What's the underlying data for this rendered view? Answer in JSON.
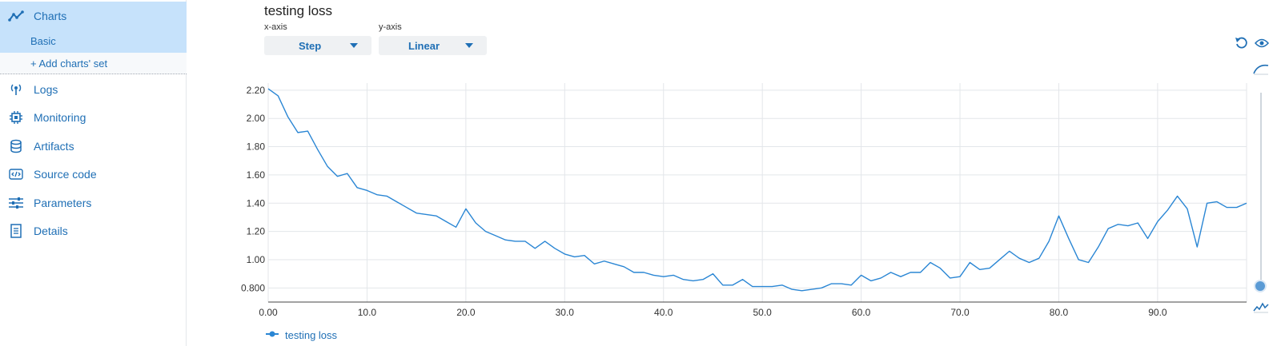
{
  "sidebar": {
    "items": [
      {
        "label": "Charts",
        "icon": "line-chart-icon"
      },
      {
        "label": "Logs",
        "icon": "broadcast-icon"
      },
      {
        "label": "Monitoring",
        "icon": "chip-icon"
      },
      {
        "label": "Artifacts",
        "icon": "database-icon"
      },
      {
        "label": "Source code",
        "icon": "code-icon"
      },
      {
        "label": "Parameters",
        "icon": "sliders-icon"
      },
      {
        "label": "Details",
        "icon": "document-icon"
      }
    ],
    "sub_basic": "Basic",
    "add_set": "+ Add charts' set"
  },
  "header": {
    "title": "testing loss",
    "xaxis_label": "x-axis",
    "yaxis_label": "y-axis",
    "xaxis_value": "Step",
    "yaxis_value": "Linear"
  },
  "colors": {
    "accent": "#1f6fb5",
    "line": "#2a86d4",
    "grid": "#e3e6ea",
    "active_bg": "#c6e2fb"
  },
  "chart_data": {
    "type": "line",
    "title": "testing loss",
    "xlabel": "",
    "ylabel": "",
    "xlim": [
      0,
      99
    ],
    "ylim": [
      0.7,
      2.25
    ],
    "x_ticks": [
      "0.00",
      "10.0",
      "20.0",
      "30.0",
      "40.0",
      "50.0",
      "60.0",
      "70.0",
      "80.0",
      "90.0"
    ],
    "y_ticks": [
      "2.20",
      "2.00",
      "1.80",
      "1.60",
      "1.40",
      "1.20",
      "1.00",
      "0.800"
    ],
    "grid": true,
    "legend": "bottom-left",
    "series": [
      {
        "name": "testing loss",
        "values": [
          2.21,
          2.16,
          2.01,
          1.9,
          1.91,
          1.78,
          1.66,
          1.59,
          1.61,
          1.51,
          1.49,
          1.46,
          1.45,
          1.41,
          1.37,
          1.33,
          1.32,
          1.31,
          1.27,
          1.23,
          1.36,
          1.26,
          1.2,
          1.17,
          1.14,
          1.13,
          1.13,
          1.08,
          1.13,
          1.08,
          1.04,
          1.02,
          1.03,
          0.97,
          0.99,
          0.97,
          0.95,
          0.91,
          0.91,
          0.89,
          0.88,
          0.89,
          0.86,
          0.85,
          0.86,
          0.9,
          0.82,
          0.82,
          0.86,
          0.81,
          0.81,
          0.81,
          0.82,
          0.79,
          0.78,
          0.79,
          0.8,
          0.83,
          0.83,
          0.82,
          0.89,
          0.85,
          0.87,
          0.91,
          0.88,
          0.91,
          0.91,
          0.98,
          0.94,
          0.87,
          0.88,
          0.98,
          0.93,
          0.94,
          1.0,
          1.06,
          1.01,
          0.98,
          1.01,
          1.13,
          1.31,
          1.15,
          1.0,
          0.98,
          1.09,
          1.22,
          1.25,
          1.24,
          1.26,
          1.15,
          1.27,
          1.35,
          1.45,
          1.36,
          1.09,
          1.4,
          1.41,
          1.37,
          1.37,
          1.4
        ]
      }
    ]
  }
}
